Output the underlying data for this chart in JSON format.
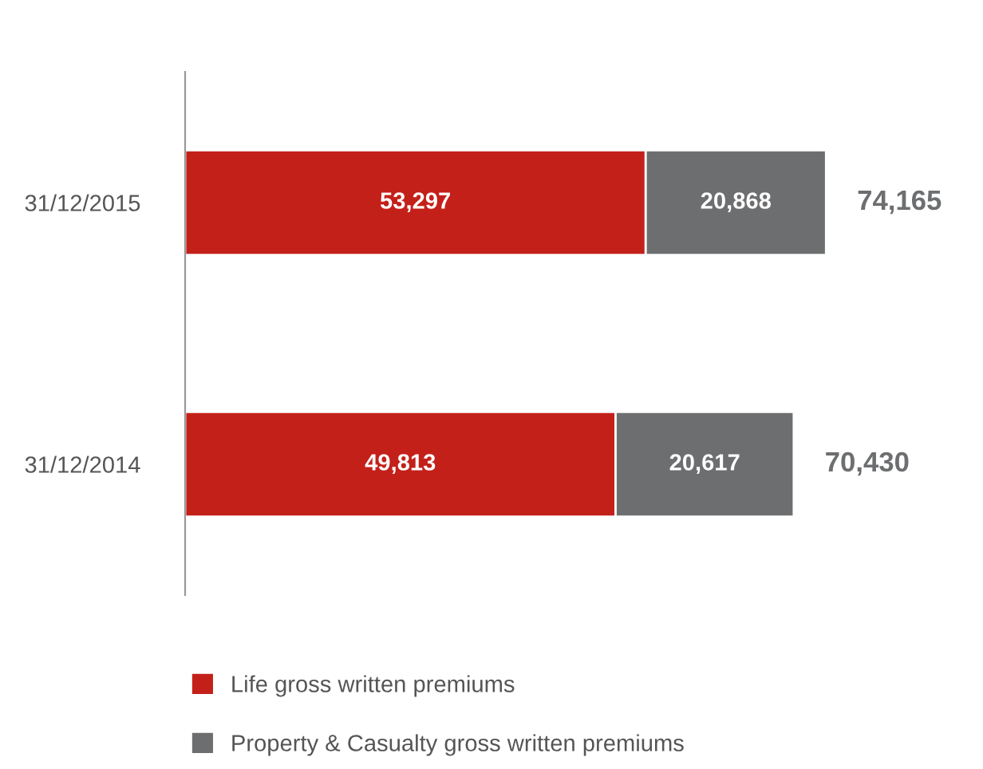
{
  "chart_data": {
    "type": "bar",
    "orientation": "horizontal",
    "stacked": true,
    "categories": [
      "31/12/2015",
      "31/12/2014"
    ],
    "series": [
      {
        "name": "Life gross written premiums",
        "color": "#c4201a",
        "values": [
          53297,
          49813
        ],
        "value_labels": [
          "53,297",
          "49,813"
        ]
      },
      {
        "name": "Property & Casualty gross written premiums",
        "color": "#6d6e70",
        "values": [
          20868,
          20617
        ],
        "value_labels": [
          "20,868",
          "20,617"
        ]
      }
    ],
    "totals": [
      "74,165",
      "70,430"
    ],
    "legend": "bottom",
    "grid": false
  }
}
